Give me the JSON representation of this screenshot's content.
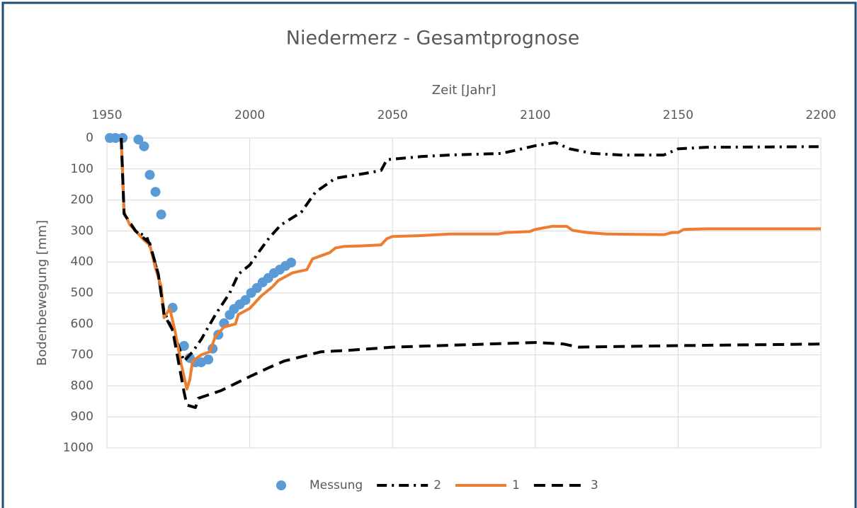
{
  "chart_data": {
    "type": "line",
    "title": "Niedermerz - Gesamtprognose",
    "x_label": "Zeit [Jahr]",
    "y_label": "Bodenbewegung [mm]",
    "xlim": [
      1950,
      2200
    ],
    "xticks": [
      1950,
      2000,
      2050,
      2100,
      2150,
      2200
    ],
    "ylim": [
      0,
      1000
    ],
    "yticks": [
      0,
      100,
      200,
      300,
      400,
      500,
      600,
      700,
      800,
      900,
      1000
    ],
    "y_inverted": true,
    "x_axis_position": "top",
    "grid": true,
    "legend": "bottom",
    "series": [
      {
        "name": "Messung",
        "color": "#5b9bd5",
        "style": "markers",
        "x": [
          1951,
          1953,
          1955.5,
          1961,
          1963,
          1965,
          1967,
          1969,
          1973,
          1977,
          1979,
          1981,
          1983,
          1985.5,
          1987,
          1989,
          1991,
          1993,
          1994.5,
          1996.5,
          1998.5,
          2000.5,
          2002.5,
          2004.5,
          2006.5,
          2008.5,
          2010.5,
          2012.5,
          2014.5
        ],
        "values": [
          0,
          0,
          0,
          5,
          27,
          119,
          174,
          247,
          548,
          671,
          710,
          724,
          724,
          715,
          680,
          635,
          598,
          571,
          552,
          537,
          523,
          500,
          484,
          466,
          452,
          436,
          425,
          413,
          402
        ]
      },
      {
        "name": "2",
        "color": "#000000",
        "style": "dashdot",
        "x": [
          1955,
          1956,
          1960,
          1964,
          1968,
          1970,
          1973,
          1977,
          1980,
          1983,
          1988,
          1993,
          1996,
          2000,
          2003,
          2007,
          2011,
          2018,
          2023,
          2030,
          2040,
          2046,
          2048,
          2060,
          2070,
          2088,
          2093,
          2100,
          2107,
          2112,
          2120,
          2130,
          2145,
          2150,
          2160,
          2200
        ],
        "values": [
          0,
          245,
          300,
          320,
          440,
          560,
          620,
          720,
          690,
          650,
          570,
          500,
          440,
          410,
          370,
          320,
          280,
          240,
          175,
          130,
          115,
          105,
          70,
          60,
          55,
          50,
          40,
          25,
          15,
          35,
          50,
          55,
          55,
          35,
          30,
          28
        ]
      },
      {
        "name": "1",
        "color": "#ed7d31",
        "style": "solid",
        "x": [
          1955,
          1956,
          1958,
          1963,
          1965,
          1967,
          1969,
          1970,
          1972,
          1974,
          1976,
          1978,
          1979,
          1980,
          1983,
          1986,
          1988,
          1991,
          1995,
          1996,
          2000,
          2004,
          2008,
          2010,
          2012,
          2015,
          2020,
          2022,
          2025,
          2028,
          2030,
          2033,
          2040,
          2046,
          2048,
          2050,
          2060,
          2070,
          2087,
          2090,
          2098,
          2100,
          2103,
          2106,
          2111,
          2113,
          2118,
          2125,
          2145,
          2148,
          2150,
          2152,
          2160,
          2200
        ],
        "values": [
          0,
          240,
          280,
          330,
          345,
          420,
          480,
          580,
          550,
          630,
          730,
          810,
          780,
          720,
          700,
          690,
          640,
          610,
          600,
          570,
          550,
          510,
          480,
          460,
          450,
          435,
          425,
          390,
          380,
          370,
          355,
          350,
          348,
          345,
          325,
          318,
          315,
          310,
          310,
          305,
          302,
          295,
          290,
          285,
          285,
          298,
          305,
          310,
          312,
          305,
          305,
          295,
          293,
          293
        ]
      },
      {
        "name": "3",
        "color": "#000000",
        "style": "dashed",
        "x": [
          1955,
          1956,
          1960,
          1965,
          1968,
          1970,
          1973,
          1977,
          1978,
          1981,
          1982,
          1990,
          2000,
          2007,
          2012,
          2025,
          2035,
          2050,
          2100,
          2110,
          2115,
          2150,
          2200
        ],
        "values": [
          0,
          245,
          300,
          340,
          440,
          570,
          620,
          820,
          862,
          870,
          840,
          815,
          770,
          740,
          720,
          690,
          685,
          675,
          660,
          665,
          675,
          670,
          665
        ]
      }
    ]
  }
}
